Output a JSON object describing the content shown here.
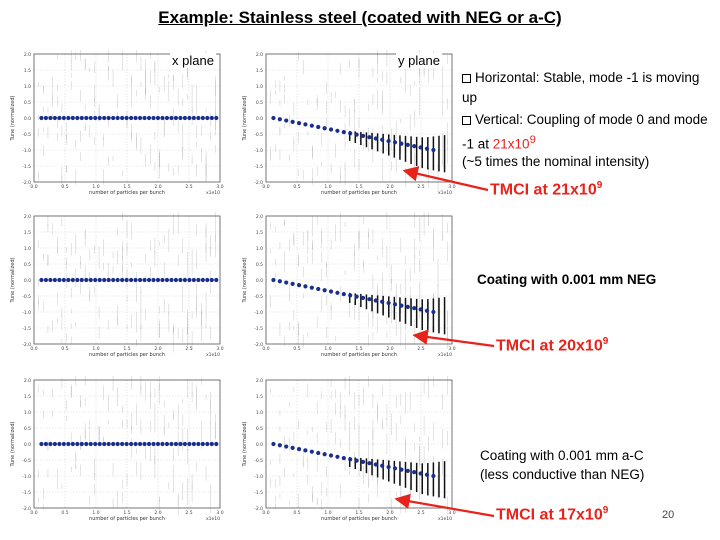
{
  "title": "Example: Stainless steel (coated with NEG or a-C)",
  "labels": {
    "x_plane": "x plane",
    "y_plane": "y plane"
  },
  "notes": {
    "line1": "Horizontal: Stable, mode -1 is moving up",
    "line2_prefix": "Vertical: Coupling of mode 0 and mode -1 at ",
    "line2_red_base": "21x10",
    "line2_red_exp": "9",
    "line3": "(~5 times the nominal intensity)"
  },
  "annotations": [
    {
      "tmci_base": "TMCI at 21x10",
      "tmci_exp": "9",
      "coating": ""
    },
    {
      "tmci_base": "TMCI at 20x10",
      "tmci_exp": "9",
      "coating": "Coating with 0.001 mm NEG"
    },
    {
      "tmci_base": "TMCI at 17x10",
      "tmci_exp": "9",
      "coating_line1": "Coating with 0.001 mm a-C",
      "coating_line2": "(less conductive than NEG)"
    }
  ],
  "page_number": "20",
  "colors": {
    "accent": "#e8231c",
    "dots": "#1a2f8c"
  },
  "chart_data": [
    {
      "type": "scatter",
      "id": "x-plane-1",
      "title": "x plane",
      "xlabel": "number of particles per bunch",
      "ylabel": "Tune (normalized)",
      "xlim": [
        0,
        3.0
      ],
      "ylim": [
        -2.0,
        2.0
      ],
      "x_exponent": "x1e10",
      "xticks": [
        "0.0",
        "0.5",
        "1.0",
        "1.5",
        "2.0",
        "2.5",
        "3.0"
      ],
      "yticks": [
        "-2.0",
        "-1.5",
        "-1.0",
        "-0.5",
        "0.0",
        "0.5",
        "1.0",
        "1.5",
        "2.0"
      ],
      "mode0": {
        "start": 0.0,
        "end": 0.0
      }
    },
    {
      "type": "scatter",
      "id": "y-plane-1",
      "title": "y plane",
      "xlabel": "number of particles per bunch",
      "ylabel": "Tune (normalized)",
      "xlim": [
        0,
        3.0
      ],
      "ylim": [
        -2.0,
        2.0
      ],
      "x_exponent": "x1e10",
      "xticks": [
        "0.0",
        "0.5",
        "1.0",
        "1.5",
        "2.0",
        "2.5",
        "3.0"
      ],
      "yticks": [
        "-2.0",
        "-1.5",
        "-1.0",
        "-0.5",
        "0.0",
        "0.5",
        "1.0",
        "1.5",
        "2.0"
      ],
      "mode0": {
        "start": 0.0,
        "end": -1.0
      }
    },
    {
      "type": "scatter",
      "id": "x-plane-2",
      "xlabel": "number of particles per bunch",
      "ylabel": "Tune (normalized)",
      "xlim": [
        0,
        3.0
      ],
      "ylim": [
        -2.0,
        2.0
      ],
      "x_exponent": "x1e10",
      "xticks": [
        "0.0",
        "0.5",
        "1.0",
        "1.5",
        "2.0",
        "2.5",
        "3.0"
      ],
      "yticks": [
        "-2.0",
        "-1.5",
        "-1.0",
        "-0.5",
        "0.0",
        "0.5",
        "1.0",
        "1.5",
        "2.0"
      ],
      "mode0": {
        "start": 0.0,
        "end": 0.0
      }
    },
    {
      "type": "scatter",
      "id": "y-plane-2",
      "xlabel": "number of particles per bunch",
      "ylabel": "Tune (normalized)",
      "xlim": [
        0,
        3.0
      ],
      "ylim": [
        -2.0,
        2.0
      ],
      "x_exponent": "x1e10",
      "xticks": [
        "0.0",
        "0.5",
        "1.0",
        "1.5",
        "2.0",
        "2.5",
        "3.0"
      ],
      "yticks": [
        "-2.0",
        "-1.5",
        "-1.0",
        "-0.5",
        "0.0",
        "0.5",
        "1.0",
        "1.5",
        "2.0"
      ],
      "mode0": {
        "start": 0.0,
        "end": -1.0
      }
    },
    {
      "type": "scatter",
      "id": "x-plane-3",
      "xlabel": "number of particles per bunch",
      "ylabel": "Tune (normalized)",
      "xlim": [
        0,
        3.0
      ],
      "ylim": [
        -2.0,
        2.0
      ],
      "x_exponent": "x1e10",
      "xticks": [
        "0.0",
        "0.5",
        "1.0",
        "1.5",
        "2.0",
        "2.5",
        "3.0"
      ],
      "yticks": [
        "-2.0",
        "-1.5",
        "-1.0",
        "-0.5",
        "0.0",
        "0.5",
        "1.0",
        "1.5",
        "2.0"
      ],
      "mode0": {
        "start": 0.0,
        "end": 0.0
      }
    },
    {
      "type": "scatter",
      "id": "y-plane-3",
      "xlabel": "number of particles per bunch",
      "ylabel": "Tune (normalized)",
      "xlim": [
        0,
        3.0
      ],
      "ylim": [
        -2.0,
        2.0
      ],
      "x_exponent": "x1e10",
      "xticks": [
        "0.0",
        "0.5",
        "1.0",
        "1.5",
        "2.0",
        "2.5",
        "3.0"
      ],
      "yticks": [
        "-2.0",
        "-1.5",
        "-1.0",
        "-0.5",
        "0.0",
        "0.5",
        "1.0",
        "1.5",
        "2.0"
      ],
      "mode0": {
        "start": 0.0,
        "end": -1.0
      }
    }
  ]
}
